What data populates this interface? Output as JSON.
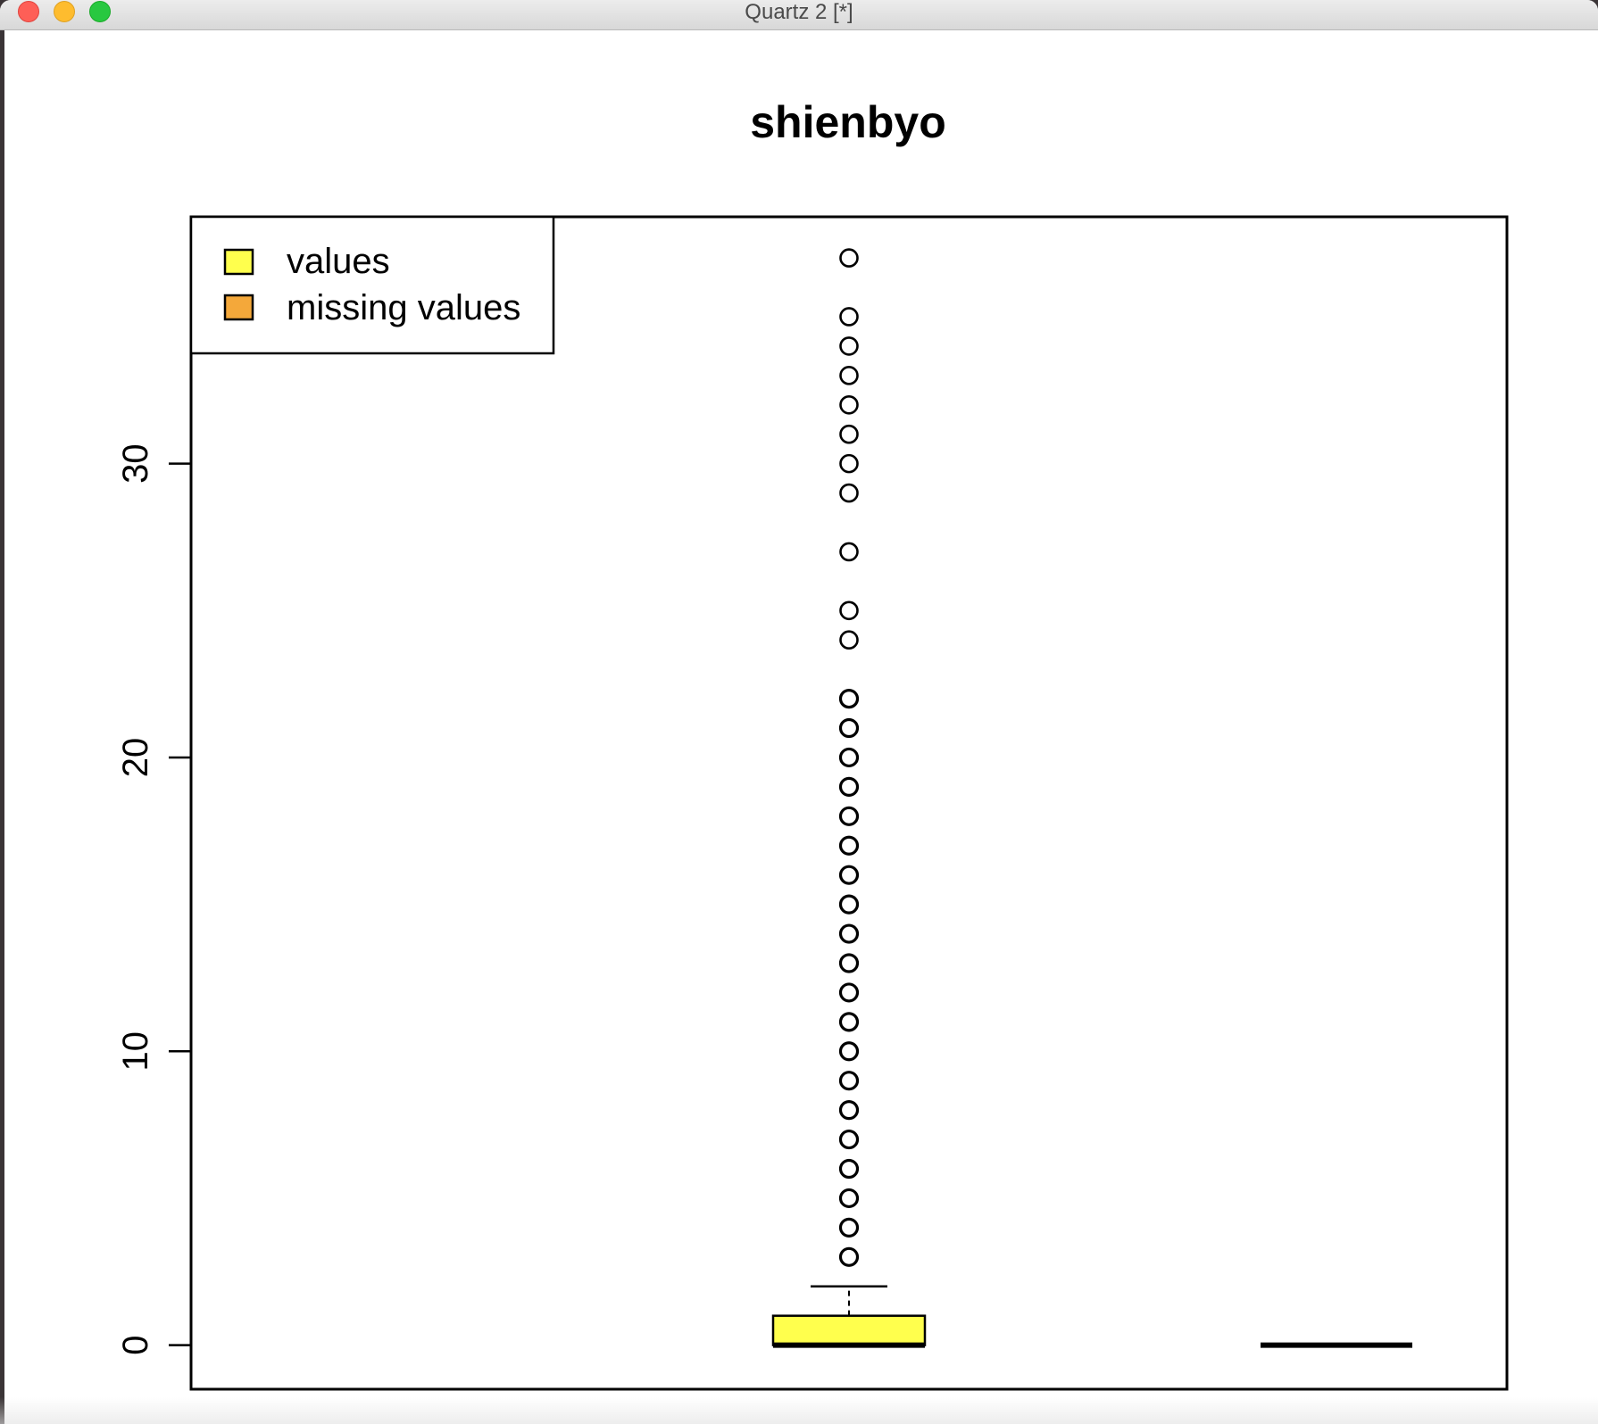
{
  "window": {
    "title": "Quartz 2 [*]"
  },
  "chart_data": {
    "type": "boxplot",
    "title": "shienbyo",
    "xlabel": "",
    "ylabel": "",
    "ylim": [
      -1.5,
      38.4
    ],
    "yticks": [
      0,
      10,
      20,
      30
    ],
    "legend": {
      "placement": "top-left",
      "entries": [
        {
          "label": "values",
          "color": "#ffff4d"
        },
        {
          "label": "missing values",
          "color": "#f4a83a"
        }
      ]
    },
    "boxes": [
      {
        "series": "values",
        "color": "#ffff4d",
        "min": 0,
        "q1": 0,
        "median": 0,
        "q3": 1,
        "whisker_high": 2,
        "outliers": [
          3,
          4,
          5,
          6,
          7,
          8,
          9,
          10,
          11,
          12,
          13,
          14,
          15,
          16,
          17,
          18,
          19,
          20,
          21,
          22,
          24,
          25,
          27,
          29,
          30,
          31,
          32,
          33,
          34,
          35,
          37
        ]
      },
      {
        "series": "missing values",
        "color": "#f4a83a",
        "min": 0,
        "q1": 0,
        "median": 0,
        "q3": 0,
        "whisker_high": 0,
        "outliers": []
      }
    ]
  }
}
